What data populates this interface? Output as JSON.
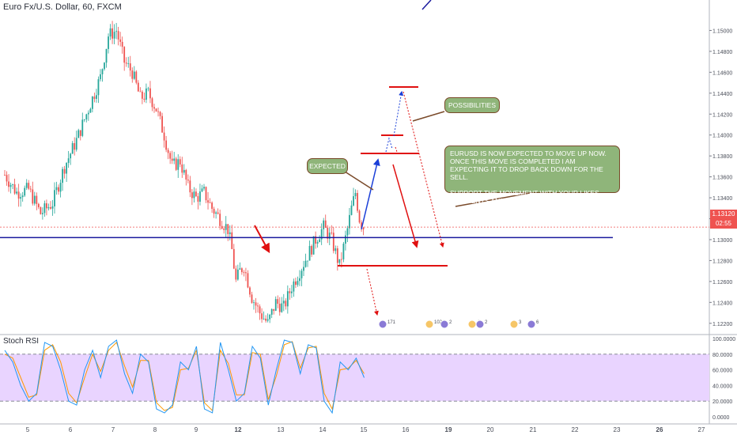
{
  "header": {
    "symbol_title": "Euro Fx/U.S. Dollar, 60, FXCM",
    "indicator_title": "Stoch RSI"
  },
  "price_axis": {
    "labels": [
      "1.15000",
      "1.14800",
      "1.14600",
      "1.14400",
      "1.14200",
      "1.14000",
      "1.13800",
      "1.13600",
      "1.13400",
      "1.13200",
      "1.13000",
      "1.12800",
      "1.12600",
      "1.12400",
      "1.12200"
    ],
    "current_price": "1.13120",
    "countdown": "02:55"
  },
  "rsi_axis": {
    "labels": [
      "100.0000",
      "80.0000",
      "60.0000",
      "40.0000",
      "20.0000",
      "0.0000"
    ]
  },
  "time_axis": {
    "labels": [
      "5",
      "6",
      "7",
      "8",
      "9",
      "12",
      "13",
      "14",
      "15",
      "16",
      "19",
      "20",
      "21",
      "22",
      "23",
      "26",
      "27"
    ]
  },
  "annotations": {
    "expected": "EXPECTED",
    "possibilities": "POSSIBILITIES",
    "main_text": "EURUSD IS NOW EXPECTED TO MOVE UP NOW. ONCE THIS MOVE IS COMPLETED I AM EXPECTING IT TO DROP BACK DOWN FOR THE SELL.\n\nSUPPORT THE MOVEMENT WITH YOUR LIKES, COMMENTS AND FOLLOW FOR MORE"
  },
  "event_badges": [
    "171",
    "1024",
    "2",
    "4",
    "2",
    "3",
    "6",
    "8"
  ],
  "colors": {
    "bull": "#26a69a",
    "bear": "#ef5350",
    "support_line": "#1a1a9e",
    "price_line": "#ef5350",
    "rsi_fill": "#e9d4ff",
    "k_line": "#2196f3",
    "d_line": "#ff9800",
    "callout_bg": "#8fb57a"
  },
  "chart_data": {
    "type": "candlestick",
    "symbol": "Euro Fx/U.S. Dollar, 60, FXCM",
    "price_range": [
      1.121,
      1.152
    ],
    "support_level": 1.1302,
    "current_price": 1.1312,
    "close_path": [
      [
        0,
        1.1362
      ],
      [
        3,
        1.1345
      ],
      [
        6,
        1.1348
      ],
      [
        9,
        1.1325
      ],
      [
        12,
        1.1335
      ],
      [
        15,
        1.137
      ],
      [
        18,
        1.1395
      ],
      [
        21,
        1.1425
      ],
      [
        24,
        1.1455
      ],
      [
        26,
        1.1495
      ],
      [
        28,
        1.15
      ],
      [
        30,
        1.147
      ],
      [
        32,
        1.146
      ],
      [
        34,
        1.1435
      ],
      [
        36,
        1.144
      ],
      [
        38,
        1.1425
      ],
      [
        40,
        1.14
      ],
      [
        42,
        1.137
      ],
      [
        44,
        1.1375
      ],
      [
        46,
        1.135
      ],
      [
        48,
        1.134
      ],
      [
        50,
        1.1345
      ],
      [
        52,
        1.133
      ],
      [
        54,
        1.132
      ],
      [
        56,
        1.131
      ],
      [
        57,
        1.129
      ],
      [
        58,
        1.126
      ],
      [
        59,
        1.127
      ],
      [
        60,
        1.1275
      ],
      [
        62,
        1.1245
      ],
      [
        64,
        1.123
      ],
      [
        66,
        1.122
      ],
      [
        68,
        1.124
      ],
      [
        70,
        1.1235
      ],
      [
        72,
        1.1255
      ],
      [
        74,
        1.127
      ],
      [
        76,
        1.1285
      ],
      [
        78,
        1.13
      ],
      [
        80,
        1.1312
      ],
      [
        82,
        1.13
      ],
      [
        84,
        1.1275
      ],
      [
        86,
        1.131
      ],
      [
        87,
        1.133
      ],
      [
        88,
        1.1345
      ],
      [
        89,
        1.132
      ],
      [
        90,
        1.1312
      ]
    ],
    "x_ticks": [
      "5",
      "6",
      "7",
      "8",
      "9",
      "12",
      "13",
      "14",
      "15",
      "16",
      "19",
      "20",
      "21",
      "22",
      "23",
      "26",
      "27"
    ],
    "stoch_rsi": {
      "range": [
        0,
        100
      ],
      "bands": [
        20,
        80
      ],
      "k": [
        [
          0,
          85
        ],
        [
          2,
          70
        ],
        [
          4,
          40
        ],
        [
          6,
          20
        ],
        [
          8,
          30
        ],
        [
          10,
          95
        ],
        [
          12,
          90
        ],
        [
          14,
          60
        ],
        [
          16,
          20
        ],
        [
          18,
          15
        ],
        [
          20,
          60
        ],
        [
          22,
          85
        ],
        [
          24,
          50
        ],
        [
          26,
          90
        ],
        [
          28,
          98
        ],
        [
          30,
          55
        ],
        [
          32,
          30
        ],
        [
          34,
          80
        ],
        [
          36,
          70
        ],
        [
          38,
          10
        ],
        [
          40,
          5
        ],
        [
          42,
          15
        ],
        [
          44,
          70
        ],
        [
          46,
          60
        ],
        [
          48,
          90
        ],
        [
          50,
          10
        ],
        [
          52,
          5
        ],
        [
          54,
          95
        ],
        [
          56,
          60
        ],
        [
          58,
          20
        ],
        [
          60,
          30
        ],
        [
          62,
          90
        ],
        [
          64,
          75
        ],
        [
          66,
          15
        ],
        [
          68,
          60
        ],
        [
          70,
          98
        ],
        [
          72,
          95
        ],
        [
          74,
          55
        ],
        [
          76,
          92
        ],
        [
          78,
          88
        ],
        [
          80,
          20
        ],
        [
          82,
          5
        ],
        [
          84,
          70
        ],
        [
          86,
          60
        ],
        [
          88,
          75
        ],
        [
          90,
          50
        ]
      ],
      "d": [
        [
          0,
          80
        ],
        [
          2,
          75
        ],
        [
          4,
          50
        ],
        [
          6,
          25
        ],
        [
          8,
          28
        ],
        [
          10,
          85
        ],
        [
          12,
          92
        ],
        [
          14,
          70
        ],
        [
          16,
          30
        ],
        [
          18,
          18
        ],
        [
          20,
          50
        ],
        [
          22,
          80
        ],
        [
          24,
          58
        ],
        [
          26,
          85
        ],
        [
          28,
          95
        ],
        [
          30,
          65
        ],
        [
          32,
          38
        ],
        [
          34,
          72
        ],
        [
          36,
          72
        ],
        [
          38,
          18
        ],
        [
          40,
          8
        ],
        [
          42,
          12
        ],
        [
          44,
          60
        ],
        [
          46,
          62
        ],
        [
          48,
          85
        ],
        [
          50,
          18
        ],
        [
          52,
          8
        ],
        [
          54,
          85
        ],
        [
          56,
          68
        ],
        [
          58,
          28
        ],
        [
          60,
          28
        ],
        [
          62,
          82
        ],
        [
          64,
          80
        ],
        [
          66,
          22
        ],
        [
          68,
          52
        ],
        [
          70,
          92
        ],
        [
          72,
          96
        ],
        [
          74,
          62
        ],
        [
          76,
          88
        ],
        [
          78,
          90
        ],
        [
          80,
          30
        ],
        [
          82,
          10
        ],
        [
          84,
          60
        ],
        [
          86,
          62
        ],
        [
          88,
          72
        ],
        [
          90,
          55
        ]
      ]
    }
  }
}
